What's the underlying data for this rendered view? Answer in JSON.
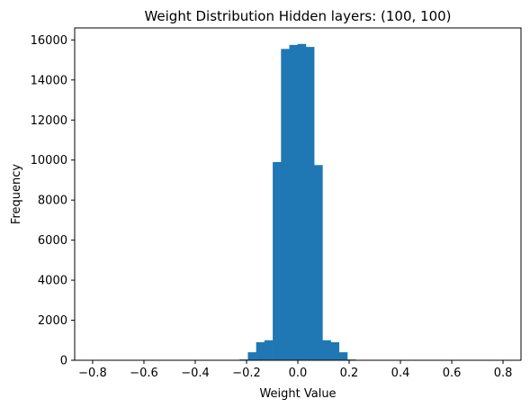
{
  "chart_data": {
    "type": "bar",
    "title": "Weight Distribution Hidden layers: (100, 100)",
    "xlabel": "Weight Value",
    "ylabel": "Frequency",
    "xlim": [
      -0.87,
      0.87
    ],
    "ylim": [
      0,
      16600
    ],
    "xticks": [
      -0.8,
      -0.6,
      -0.4,
      -0.2,
      0.0,
      0.2,
      0.4,
      0.6,
      0.8
    ],
    "xtick_labels": [
      "−0.8",
      "−0.6",
      "−0.4",
      "−0.2",
      "0.0",
      "0.2",
      "0.4",
      "0.6",
      "0.8"
    ],
    "yticks": [
      0,
      2000,
      4000,
      6000,
      8000,
      10000,
      12000,
      14000,
      16000
    ],
    "ytick_labels": [
      "0",
      "2000",
      "4000",
      "6000",
      "8000",
      "10000",
      "12000",
      "14000",
      "16000"
    ],
    "bin_width": 0.0323,
    "bins": [
      {
        "x0": -0.2271,
        "value": 40
      },
      {
        "x0": -0.1948,
        "value": 400
      },
      {
        "x0": -0.1625,
        "value": 900
      },
      {
        "x0": -0.1302,
        "value": 1000
      },
      {
        "x0": -0.0979,
        "value": 9900
      },
      {
        "x0": -0.0656,
        "value": 15550
      },
      {
        "x0": -0.0333,
        "value": 15750
      },
      {
        "x0": -0.001,
        "value": 15800
      },
      {
        "x0": 0.0313,
        "value": 15650
      },
      {
        "x0": 0.0636,
        "value": 9750
      },
      {
        "x0": 0.0959,
        "value": 1000
      },
      {
        "x0": 0.1282,
        "value": 900
      },
      {
        "x0": 0.1605,
        "value": 400
      },
      {
        "x0": 0.1928,
        "value": 40
      }
    ],
    "bar_color": "#1f77b4",
    "grid": false
  }
}
